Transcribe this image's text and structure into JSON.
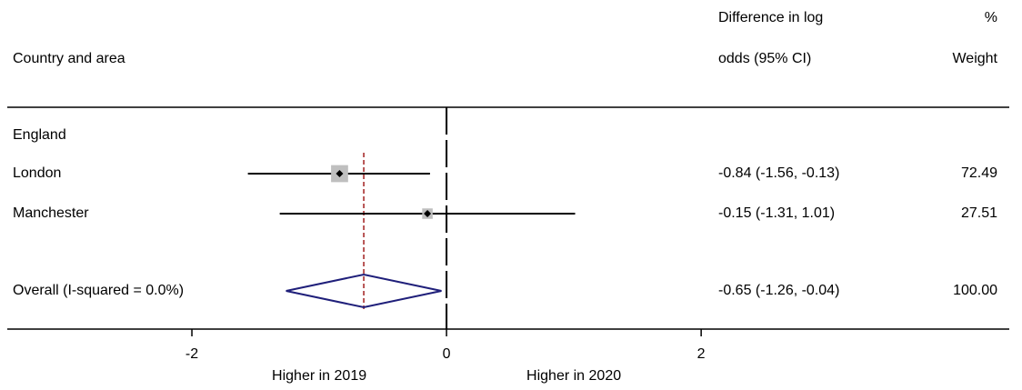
{
  "chart_data": {
    "type": "forest",
    "headers": {
      "label": "Country and area",
      "ci_line1": "Difference in log",
      "ci_line2": "odds (95% CI)",
      "weight_line1": "%",
      "weight_line2": "Weight"
    },
    "group": "England",
    "rows": [
      {
        "label": "London",
        "value": -0.84,
        "lower": -1.56,
        "upper": -0.13,
        "ci_label": "-0.84 (-1.56, -0.13)",
        "weight": 72.49
      },
      {
        "label": "Manchester",
        "value": -0.15,
        "lower": -1.31,
        "upper": 1.01,
        "ci_label": "-0.15 (-1.31, 1.01)",
        "weight": 27.51
      }
    ],
    "overall": {
      "label": "Overall (I-squared = 0.0%)",
      "value": -0.65,
      "lower": -1.26,
      "upper": -0.04,
      "ci_label": "-0.65 (-1.26, -0.04)",
      "weight": 100,
      "weight_label": "100.00"
    },
    "xlim": [
      -3.45,
      4.42
    ],
    "xticks": [
      -2,
      0,
      2
    ],
    "x_annotations": [
      "Higher in 2019",
      "Higher in 2020"
    ],
    "null_line": 0,
    "marker_color": "#bfbfbf",
    "line_color": "#000000",
    "diamond_color": "#1f1f7a",
    "overall_line_color": "#a11e1e"
  }
}
